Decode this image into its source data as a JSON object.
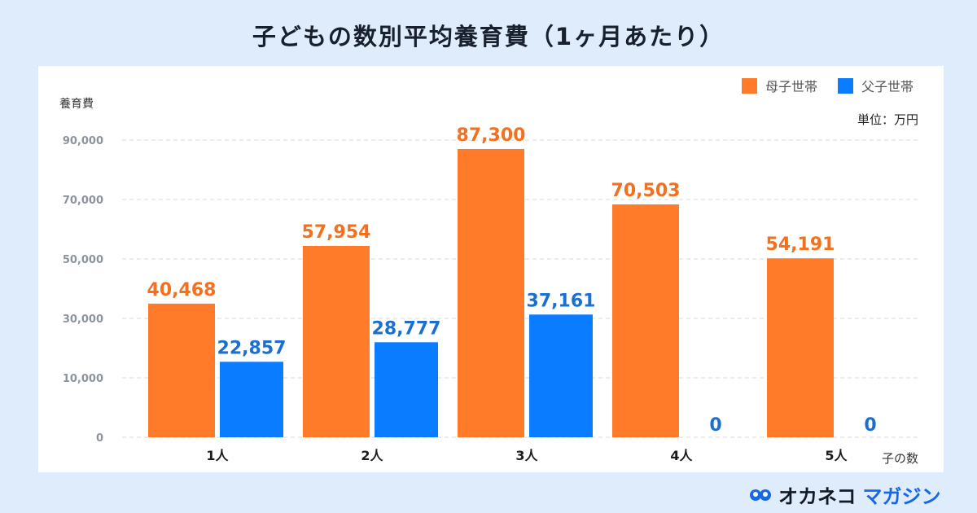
{
  "title": "子どもの数別平均養育費（1ヶ月あたり）",
  "logo": {
    "part1": "オカネコ",
    "part2": "マガジン"
  },
  "chart_data": {
    "type": "bar",
    "title": "子どもの数別平均養育費（1ヶ月あたり）",
    "ylabel": "養育費",
    "xlabel": "子の数",
    "unit_note": "単位：万円",
    "categories": [
      "1人",
      "2人",
      "3人",
      "4人",
      "5人"
    ],
    "series": [
      {
        "name": "母子世帯",
        "color": "#ff7a29",
        "label_color": "#f2701e",
        "values": [
          40468,
          57954,
          87300,
          70503,
          54191
        ],
        "labels": [
          "40,468",
          "57,954",
          "87,300",
          "70,503",
          "54,191"
        ]
      },
      {
        "name": "父子世帯",
        "color": "#0a7cff",
        "label_color": "#1a6fd1",
        "values": [
          22857,
          28777,
          37161,
          0,
          0
        ],
        "labels": [
          "22,857",
          "28,777",
          "37,161",
          "0",
          "0"
        ]
      }
    ],
    "ytick_labels": [
      "0",
      "10,000",
      "30,000",
      "50,000",
      "70,000",
      "90,000"
    ],
    "ylim": [
      0,
      90000
    ],
    "grid": true,
    "legend": "top-right"
  }
}
